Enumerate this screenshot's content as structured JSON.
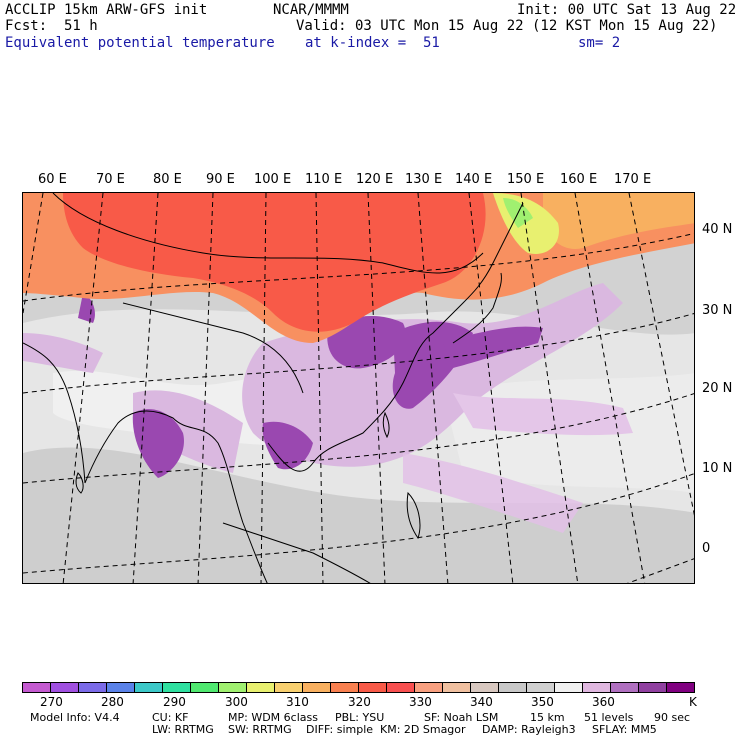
{
  "header": {
    "model": "ACCLIP 15km ARW-GFS init",
    "org": "NCAR/MMMM",
    "init": "Init: 00 UTC Sat 13 Aug 22",
    "fcst_label": "Fcst:",
    "fcst_value": "51 h",
    "valid": "Valid: 03 UTC Mon 15 Aug 22 (12 KST Mon 15 Aug 22)",
    "field": "Equivalent potential temperature",
    "level": "at k-index =  51",
    "smooth": "sm= 2"
  },
  "map": {
    "lon_labels": [
      "60 E",
      "70 E",
      "80 E",
      "90 E",
      "100 E",
      "110 E",
      "120 E",
      "130 E",
      "140 E",
      "150 E",
      "160 E",
      "170 E"
    ],
    "lat_labels": [
      "40 N",
      "30 N",
      "20 N",
      "10 N",
      "0"
    ]
  },
  "colorbar": {
    "colors": [
      "#c45ad0",
      "#a050e0",
      "#7b6be8",
      "#5a82e8",
      "#3cc8c8",
      "#2fe0a0",
      "#50e870",
      "#a0f070",
      "#e8f070",
      "#f8d070",
      "#f8b060",
      "#f88050",
      "#f85a48",
      "#f85050",
      "#f8a080",
      "#f0c0a0",
      "#d8c8c0",
      "#c8c8c8",
      "#d0d0d0",
      "#f0f0f0",
      "#e0b8e0",
      "#b070c0",
      "#9040a0",
      "#800080"
    ],
    "ticks": [
      "270",
      "280",
      "290",
      "300",
      "310",
      "320",
      "330",
      "340",
      "350",
      "360",
      "K"
    ]
  },
  "footer": {
    "line1": [
      "Model Info: V4.4",
      "CU: KF",
      "MP: WDM 6class",
      "PBL: YSU",
      "SF: Noah LSM",
      "15 km",
      "51 levels",
      "90 sec"
    ],
    "line2": [
      "LW: RRTMG",
      "SW: RRTMG",
      "DIFF: simple",
      "KM: 2D Smagor",
      "DAMP: Rayleigh3",
      "SFLAY: MM5"
    ]
  }
}
